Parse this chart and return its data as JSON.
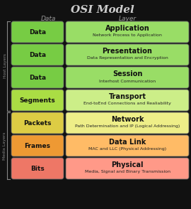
{
  "title": "OSI Model",
  "col_header_data": "Data",
  "col_header_layer": "Layer",
  "rows": [
    {
      "data_label": "Data",
      "layer_name": "Application",
      "layer_desc": "Network Process to Application",
      "data_color": "#77CC44",
      "layer_color": "#99DD66",
      "group": "host"
    },
    {
      "data_label": "Data",
      "layer_name": "Presentation",
      "layer_desc": "Data Representation and Encryption",
      "data_color": "#77CC44",
      "layer_color": "#99DD66",
      "group": "host"
    },
    {
      "data_label": "Data",
      "layer_name": "Session",
      "layer_desc": "Interhost Communication",
      "data_color": "#77CC44",
      "layer_color": "#99DD66",
      "group": "host"
    },
    {
      "data_label": "Segments",
      "layer_name": "Transport",
      "layer_desc": "End-toEnd Connections and Realiability",
      "data_color": "#AADD44",
      "layer_color": "#CCEE88",
      "group": "host"
    },
    {
      "data_label": "Packets",
      "layer_name": "Network",
      "layer_desc": "Path Determination and IP (Logical Addressing)",
      "data_color": "#DDCC44",
      "layer_color": "#EEEE88",
      "group": "media"
    },
    {
      "data_label": "Frames",
      "layer_name": "Data Link",
      "layer_desc": "MAC and LLC (Physical Addressing)",
      "data_color": "#EE9933",
      "layer_color": "#FFBB66",
      "group": "media"
    },
    {
      "data_label": "Bits",
      "layer_name": "Physical",
      "layer_desc": "Media, Signal and Binary Transmission",
      "data_color": "#EE7766",
      "layer_color": "#FF9988",
      "group": "media"
    }
  ],
  "host_label": "Host Layers",
  "media_label": "Media Layers",
  "bg_color": "#111111",
  "title_color": "#CCCCCC",
  "header_color": "#999999"
}
